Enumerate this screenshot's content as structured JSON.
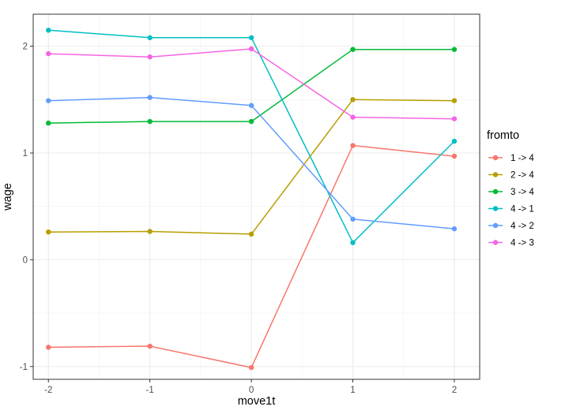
{
  "chart_data": {
    "type": "line",
    "xlabel": "move1t",
    "ylabel": "wage",
    "x": [
      -2,
      -1,
      0,
      1,
      2
    ],
    "xlim": [
      -2.15,
      2.25
    ],
    "ylim": [
      -1.12,
      2.3
    ],
    "xticks": [
      "-2",
      "-1",
      "0",
      "1",
      "2"
    ],
    "yticks": [
      "-1",
      "0",
      "1",
      "2"
    ],
    "grid": true,
    "legend": {
      "title": "fromto",
      "position": "right"
    },
    "series": [
      {
        "name": "1 -> 4",
        "color": "#F8766D",
        "values": [
          -0.82,
          -0.81,
          -1.01,
          1.07,
          0.97
        ]
      },
      {
        "name": "2 -> 4",
        "color": "#B79F00",
        "values": [
          0.26,
          0.265,
          0.24,
          1.5,
          1.49
        ]
      },
      {
        "name": "3 -> 4",
        "color": "#00BA38",
        "values": [
          1.28,
          1.295,
          1.295,
          1.97,
          1.97
        ]
      },
      {
        "name": "4 -> 1",
        "color": "#00BFC4",
        "values": [
          2.15,
          2.08,
          2.08,
          0.16,
          1.11
        ]
      },
      {
        "name": "4 -> 2",
        "color": "#619CFF",
        "values": [
          1.49,
          1.52,
          1.445,
          0.38,
          0.29
        ]
      },
      {
        "name": "4 -> 3",
        "color": "#F564E3",
        "values": [
          1.93,
          1.9,
          1.975,
          1.335,
          1.32
        ]
      }
    ]
  }
}
